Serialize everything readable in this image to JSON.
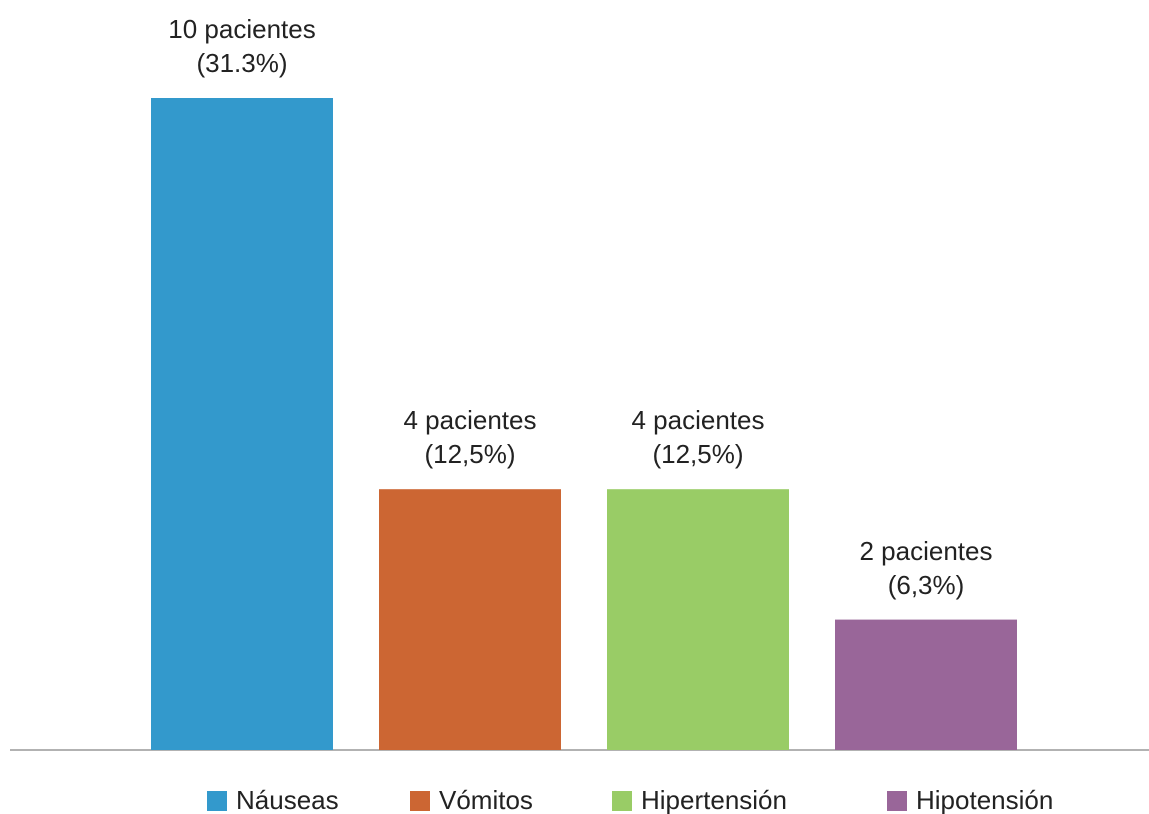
{
  "chart_data": {
    "type": "bar",
    "series": [
      {
        "name": "Náuseas",
        "color": "#3399cc",
        "values": [
          10
        ],
        "value_labels": [
          "10 pacientes (31.3%)"
        ]
      },
      {
        "name": "Vómitos",
        "color": "#cc6633",
        "values": [
          4
        ],
        "value_labels": [
          "4 pacientes (12,5%)"
        ]
      },
      {
        "name": "Hipertensión",
        "color": "#99cc66",
        "values": [
          4
        ],
        "value_labels": [
          "4 pacientes (12,5%)"
        ]
      },
      {
        "name": "Hipotensión",
        "color": "#996699",
        "values": [
          2
        ],
        "value_labels": [
          "2 pacientes (6,3%)"
        ]
      }
    ],
    "ylim": [
      0,
      10
    ],
    "legend": "bottom"
  }
}
